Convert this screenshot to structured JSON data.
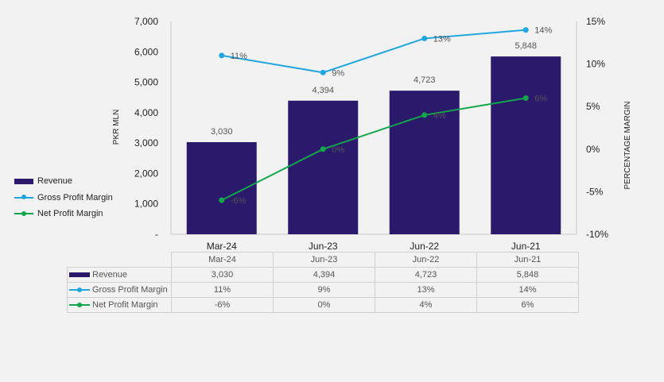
{
  "chart_data": {
    "type": "bar",
    "categories": [
      "Mar-24",
      "Jun-23",
      "Jun-22",
      "Jun-21"
    ],
    "series": [
      {
        "name": "Revenue",
        "kind": "bar",
        "axis": "left",
        "values": [
          3030,
          4394,
          4723,
          5848
        ],
        "labels": [
          "3,030",
          "4,394",
          "4,723",
          "5,848"
        ],
        "color": "#2b1a6c"
      },
      {
        "name": "Gross Profit Margin",
        "kind": "line",
        "axis": "right",
        "values": [
          11,
          9,
          13,
          14
        ],
        "labels": [
          "11%",
          "9%",
          "13%",
          "14%"
        ],
        "color": "#1fa5e0"
      },
      {
        "name": "Net Profit Margin",
        "kind": "line",
        "axis": "right",
        "values": [
          -6,
          0,
          4,
          6
        ],
        "labels": [
          "-6%",
          "0%",
          "4%",
          "6%"
        ],
        "color": "#12a64a"
      }
    ],
    "ylabel": "PKR MLN",
    "y2label": "PERCENTAGE MARGIN",
    "ylim": [
      0,
      7000
    ],
    "y2lim": [
      -10,
      15
    ],
    "yticks": [
      "-",
      "1,000",
      "2,000",
      "3,000",
      "4,000",
      "5,000",
      "6,000",
      "7,000"
    ],
    "y2ticks": [
      "-10%",
      "-5%",
      "0%",
      "5%",
      "10%",
      "15%"
    ],
    "legend_position": "left",
    "grid": false
  }
}
